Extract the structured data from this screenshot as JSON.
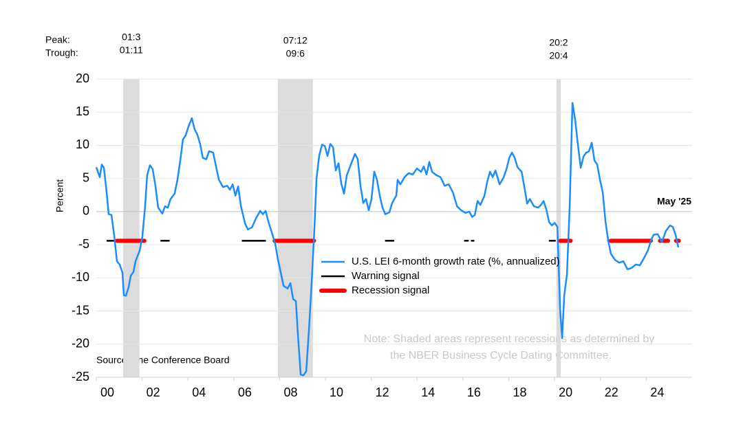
{
  "chart_data": {
    "type": "line",
    "y_label": "Percent",
    "peak_label": "Peak:",
    "trough_label": "Trough:",
    "end_label": "May '25",
    "source": "Source: The Conference Board",
    "note": [
      "Note: Shaded areas represent recessions as determined by",
      "the NBER Business Cycle Dating Committee."
    ],
    "xlim": [
      2000,
      2026
    ],
    "xticks": [
      {
        "value": 2000,
        "label": "00"
      },
      {
        "value": 2002,
        "label": "02"
      },
      {
        "value": 2004,
        "label": "04"
      },
      {
        "value": 2006,
        "label": "06"
      },
      {
        "value": 2008,
        "label": "08"
      },
      {
        "value": 2010,
        "label": "10"
      },
      {
        "value": 2012,
        "label": "12"
      },
      {
        "value": 2014,
        "label": "14"
      },
      {
        "value": 2016,
        "label": "16"
      },
      {
        "value": 2018,
        "label": "18"
      },
      {
        "value": 2020,
        "label": "20"
      },
      {
        "value": 2022,
        "label": "22"
      },
      {
        "value": 2024,
        "label": "24"
      }
    ],
    "ylim": [
      -25,
      20
    ],
    "yticks": [
      -25,
      -20,
      -15,
      -10,
      -5,
      0,
      5,
      10,
      15,
      20
    ],
    "grid": true,
    "recessions": [
      {
        "start": 2001.17,
        "end": 2001.88,
        "peak": "01:3",
        "trough": "01:11"
      },
      {
        "start": 2007.92,
        "end": 2009.45,
        "peak": "07:12",
        "trough": "09:6"
      },
      {
        "start": 2020.08,
        "end": 2020.27,
        "peak": "20:2",
        "trough": "20:4"
      }
    ],
    "x": [
      2000.0,
      2000.15,
      2000.24,
      2000.33,
      2000.45,
      2000.54,
      2000.66,
      2000.78,
      2000.9,
      2001.02,
      2001.14,
      2001.2,
      2001.29,
      2001.41,
      2001.5,
      2001.62,
      2001.71,
      2001.89,
      2002.01,
      2002.13,
      2002.22,
      2002.34,
      2002.46,
      2002.58,
      2002.7,
      2002.88,
      2003.0,
      2003.12,
      2003.24,
      2003.42,
      2003.54,
      2003.66,
      2003.78,
      2003.9,
      2004.02,
      2004.17,
      2004.29,
      2004.41,
      2004.53,
      2004.65,
      2004.8,
      2004.92,
      2005.1,
      2005.23,
      2005.35,
      2005.53,
      2005.71,
      2005.83,
      2005.95,
      2006.07,
      2006.19,
      2006.31,
      2006.49,
      2006.61,
      2006.79,
      2006.97,
      2007.15,
      2007.27,
      2007.39,
      2007.51,
      2007.69,
      2007.81,
      2007.93,
      2008.05,
      2008.17,
      2008.35,
      2008.47,
      2008.59,
      2008.71,
      2008.8,
      2008.92,
      2009.04,
      2009.16,
      2009.28,
      2009.4,
      2009.52,
      2009.61,
      2009.73,
      2009.85,
      2009.97,
      2010.09,
      2010.21,
      2010.33,
      2010.45,
      2010.57,
      2010.69,
      2010.81,
      2010.93,
      2011.11,
      2011.29,
      2011.41,
      2011.53,
      2011.65,
      2011.77,
      2011.89,
      2012.01,
      2012.13,
      2012.25,
      2012.37,
      2012.49,
      2012.61,
      2012.79,
      2012.91,
      2013.09,
      2013.15,
      2013.27,
      2013.45,
      2013.63,
      2013.81,
      2013.99,
      2014.17,
      2014.29,
      2014.41,
      2014.53,
      2014.65,
      2014.83,
      2015.02,
      2015.2,
      2015.38,
      2015.56,
      2015.74,
      2015.92,
      2016.1,
      2016.28,
      2016.4,
      2016.52,
      2016.64,
      2016.76,
      2016.94,
      2017.06,
      2017.18,
      2017.3,
      2017.42,
      2017.6,
      2017.78,
      2017.9,
      2018.02,
      2018.14,
      2018.26,
      2018.38,
      2018.56,
      2018.68,
      2018.8,
      2018.92,
      2019.1,
      2019.28,
      2019.4,
      2019.52,
      2019.64,
      2019.76,
      2019.88,
      2020.0,
      2020.12,
      2020.24,
      2020.33,
      2020.42,
      2020.54,
      2020.66,
      2020.78,
      2020.9,
      2021.02,
      2021.14,
      2021.26,
      2021.38,
      2021.5,
      2021.62,
      2021.74,
      2021.86,
      2021.98,
      2022.1,
      2022.22,
      2022.34,
      2022.46,
      2022.64,
      2022.82,
      2023.0,
      2023.18,
      2023.36,
      2023.54,
      2023.72,
      2023.9,
      2024.08,
      2024.2,
      2024.32,
      2024.5,
      2024.68,
      2024.86,
      2025.04,
      2025.16,
      2025.28,
      2025.4
    ],
    "series": [
      {
        "name": "U.S. LEI 6-month growth rate (%, annualized)",
        "color": "#1a8cff",
        "values": [
          6.7,
          5.2,
          7.1,
          6.6,
          2.9,
          -0.4,
          -0.5,
          -3.6,
          -7.5,
          -8.0,
          -9.2,
          -12.6,
          -12.7,
          -11.4,
          -9.7,
          -9.1,
          -7.5,
          -5.9,
          -3.8,
          0.8,
          5.5,
          7.0,
          6.4,
          3.9,
          0.6,
          -0.3,
          0.8,
          0.6,
          1.9,
          2.7,
          4.8,
          7.6,
          10.9,
          11.5,
          12.8,
          14.1,
          12.4,
          11.6,
          10.2,
          8.1,
          7.9,
          9.1,
          8.9,
          6.7,
          4.8,
          3.7,
          3.9,
          3.3,
          4.1,
          2.4,
          3.8,
          0.8,
          -1.8,
          -2.7,
          -2.4,
          -1.0,
          0.1,
          -0.4,
          0.1,
          -1.5,
          -3.5,
          -4.9,
          -7.3,
          -9.2,
          -11.2,
          -11.6,
          -10.8,
          -13.2,
          -13.5,
          -18.7,
          -24.6,
          -24.7,
          -24.1,
          -17.8,
          -10.6,
          -2.3,
          5.0,
          8.5,
          10.1,
          9.9,
          8.4,
          10.2,
          9.7,
          6.2,
          7.3,
          4.2,
          2.7,
          5.5,
          7.1,
          8.7,
          7.9,
          3.9,
          1.3,
          1.9,
          0.2,
          1.9,
          6.0,
          4.8,
          2.4,
          0.6,
          -0.4,
          -0.1,
          1.3,
          2.4,
          4.8,
          4.1,
          5.2,
          5.8,
          5.6,
          6.5,
          6.0,
          6.8,
          5.6,
          7.5,
          6.0,
          5.5,
          5.2,
          3.9,
          4.1,
          2.9,
          0.8,
          0.2,
          -0.2,
          0.0,
          -0.8,
          -0.5,
          1.6,
          1.0,
          2.4,
          4.5,
          6.0,
          5.2,
          6.2,
          4.1,
          5.2,
          6.4,
          8.1,
          8.9,
          8.1,
          6.7,
          6.0,
          3.7,
          1.2,
          1.9,
          0.8,
          0.6,
          1.0,
          1.6,
          0.3,
          -1.6,
          -2.1,
          -1.7,
          -2.3,
          -14.7,
          -19.1,
          -12.7,
          -9.5,
          0.8,
          16.4,
          13.8,
          10.0,
          6.6,
          8.3,
          8.9,
          9.1,
          10.4,
          7.7,
          7.1,
          4.8,
          2.9,
          -1.5,
          -4.4,
          -6.4,
          -7.3,
          -7.7,
          -7.5,
          -8.7,
          -8.5,
          -8.0,
          -8.1,
          -7.0,
          -5.8,
          -4.4,
          -3.5,
          -3.4,
          -4.6,
          -2.9,
          -2.1,
          -2.3,
          -3.5,
          -5.4
        ]
      }
    ],
    "signals": [
      {
        "name": "Warning signal",
        "color": "#000000",
        "level": -4.4,
        "segments": [
          [
            2000.45,
            2001.14
          ],
          [
            2002.8,
            2003.2
          ],
          [
            2006.35,
            2007.4
          ],
          [
            2012.6,
            2013.0
          ],
          [
            2016.05,
            2016.25
          ],
          [
            2016.35,
            2016.5
          ],
          [
            2019.75,
            2020.05
          ],
          [
            2022.3,
            2022.45
          ]
        ]
      },
      {
        "name": "Recession signal",
        "color": "#ff0000",
        "level": -4.4,
        "segments": [
          [
            2000.9,
            2002.1
          ],
          [
            2007.78,
            2009.5
          ],
          [
            2020.25,
            2020.7
          ],
          [
            2022.45,
            2024.2
          ],
          [
            2024.6,
            2024.95
          ],
          [
            2025.3,
            2025.42
          ]
        ]
      }
    ]
  }
}
